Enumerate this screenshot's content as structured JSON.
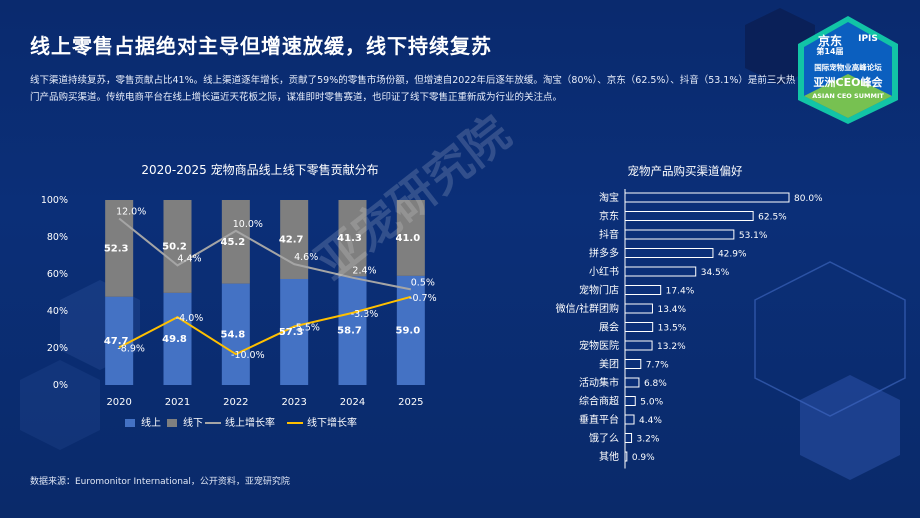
{
  "page": {
    "title": "线上零售占据绝对主导但增速放缓，线下持续复苏",
    "description": "线下渠道持续复苏，零售贡献占比41%。线上渠道逐年增长，贡献了59%的零售市场份额，但增速自2022年后逐年放缓。淘宝（80%）、京东（62.5%）、抖音（53.1%）是前三大热门产品购买渠道。传统电商平台在线上增长逼近天花板之际，谋准即时零售赛道，也印证了线下零售正重新成为行业的关注点。",
    "source": "数据来源：Euromonitor International，公开资料，亚宠研究院",
    "watermark": "亚宠研究院",
    "logo": {
      "line1": "京东",
      "line2": "第14届",
      "ipis": "IPIS",
      "line3": "国际宠物业高峰论坛",
      "line4": "亚洲CEO峰会",
      "line5": "ASIAN CEO SUMMIT"
    },
    "colors": {
      "online": "#4472c4",
      "offline": "#7f7f7f",
      "online_growth": "#a5a5a5",
      "offline_growth": "#ffc000",
      "hbar": "#ffffff",
      "background": "#0b2f78"
    }
  },
  "chart_data": [
    {
      "type": "bar",
      "title": "2020-2025 宠物商品线上线下零售贡献分布",
      "categories": [
        "2020",
        "2021",
        "2022",
        "2023",
        "2024",
        "2025"
      ],
      "series": [
        {
          "name": "线上",
          "kind": "stacked-bar",
          "values": [
            47.7,
            49.8,
            54.8,
            57.3,
            58.7,
            59.0
          ]
        },
        {
          "name": "线下",
          "kind": "stacked-bar",
          "values": [
            52.3,
            50.2,
            45.2,
            42.7,
            41.3,
            41.0
          ]
        },
        {
          "name": "线上增长率",
          "kind": "line",
          "axis": "right",
          "values": [
            12.0,
            4.4,
            10.0,
            4.6,
            2.4,
            0.5
          ]
        },
        {
          "name": "线下增长率",
          "kind": "line",
          "axis": "right",
          "values": [
            -8.9,
            -4.0,
            -10.0,
            -5.5,
            -3.3,
            -0.7
          ]
        }
      ],
      "y_left": {
        "ticks": [
          "0%",
          "20%",
          "40%",
          "60%",
          "80%",
          "100%"
        ],
        "range": [
          0,
          100
        ]
      },
      "y_right": {
        "ticks": [
          "-15.0%",
          "-10.0%",
          "-5.0%",
          "0.0%",
          "5.0%",
          "10.0%",
          "15.0%"
        ],
        "range": [
          -15,
          15
        ]
      },
      "bar_labels": {
        "online": [
          "47.7",
          "49.8",
          "54.8",
          "57.3",
          "58.7",
          "59.0"
        ],
        "offline": [
          "52.3",
          "50.2",
          "45.2",
          "42.7",
          "41.3",
          "41.0"
        ]
      },
      "line_labels": {
        "online_growth": [
          "12.0%",
          "4.4%",
          "10.0%",
          "4.6%",
          "2.4%",
          "0.5%"
        ],
        "offline_growth": [
          "-8.9%",
          "-4.0%",
          "-10.0%",
          "-5.5%",
          "-3.3%",
          "-0.7%"
        ]
      },
      "legend": [
        "线上",
        "线下",
        "线上增长率",
        "线下增长率"
      ],
      "legend_position": "bottom"
    },
    {
      "type": "bar",
      "orientation": "horizontal",
      "title": "宠物产品购买渠道偏好",
      "categories": [
        "淘宝",
        "京东",
        "抖音",
        "拼多多",
        "小红书",
        "宠物门店",
        "微信/社群团购",
        "展会",
        "宠物医院",
        "美团",
        "活动集市",
        "综合商超",
        "垂直平台",
        "饿了么",
        "其他"
      ],
      "values": [
        80.0,
        62.5,
        53.1,
        42.9,
        34.5,
        17.4,
        13.4,
        13.5,
        13.2,
        7.7,
        6.8,
        5.0,
        4.4,
        3.2,
        0.9
      ],
      "labels": [
        "80.0%",
        "62.5%",
        "53.1%",
        "42.9%",
        "34.5%",
        "17.4%",
        "13.4%",
        "13.5%",
        "13.2%",
        "7.7%",
        "6.8%",
        "5.0%",
        "4.4%",
        "3.2%",
        "0.9%"
      ],
      "xlim": [
        0,
        100
      ]
    }
  ]
}
